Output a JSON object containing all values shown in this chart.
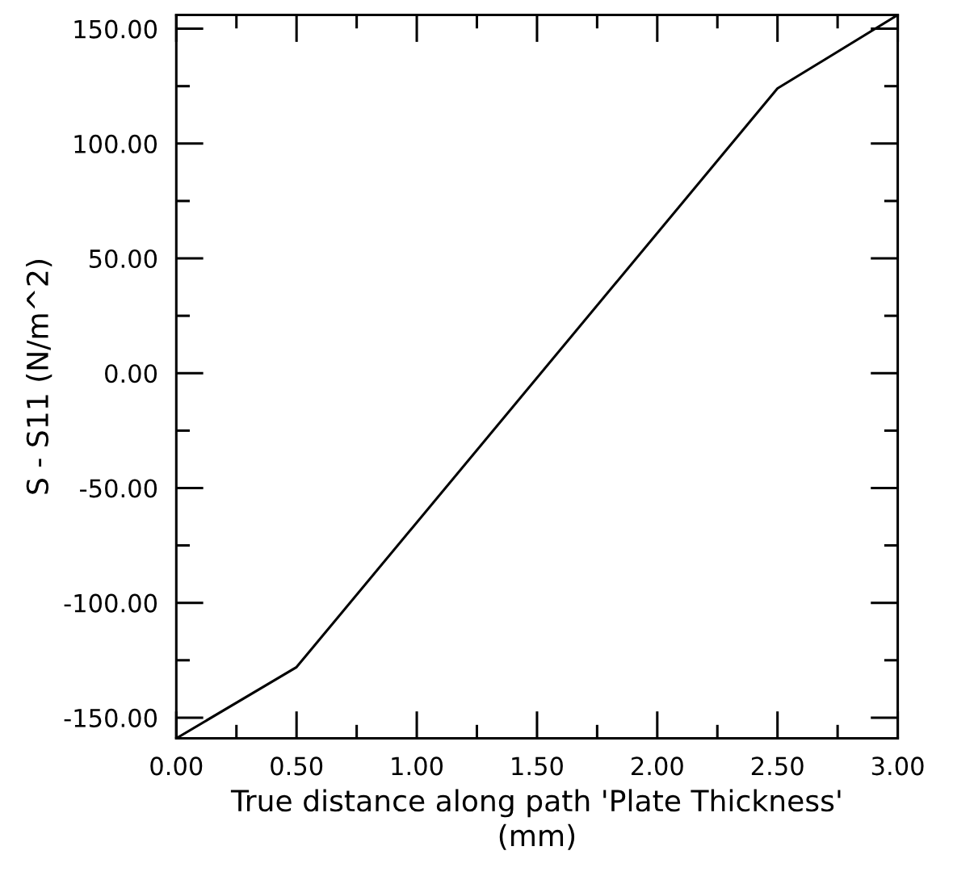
{
  "chart_data": {
    "type": "line",
    "xlabel": "True distance along path 'Plate Thickness'\n(mm)",
    "ylabel": "S - S11 (N/m^2)",
    "x": [
      0,
      0.5,
      2.5,
      3.0
    ],
    "series": [
      {
        "color": "#000000",
        "values": [
          -159,
          -128,
          124,
          156
        ]
      }
    ],
    "xlim": [
      0,
      3.0
    ],
    "ylim": [
      -159,
      156
    ],
    "xticks": [
      {
        "value": 0,
        "label": "0.00"
      },
      {
        "value": 0.25,
        "label": null
      },
      {
        "value": 0.5,
        "label": "0.50"
      },
      {
        "value": 0.75,
        "label": null
      },
      {
        "value": 1.0,
        "label": "1.00"
      },
      {
        "value": 1.25,
        "label": null
      },
      {
        "value": 1.5,
        "label": "1.50"
      },
      {
        "value": 1.75,
        "label": null
      },
      {
        "value": 2.0,
        "label": "2.00"
      },
      {
        "value": 2.25,
        "label": null
      },
      {
        "value": 2.5,
        "label": "2.50"
      },
      {
        "value": 2.75,
        "label": null
      },
      {
        "value": 3.0,
        "label": "3.00"
      }
    ],
    "yticks": [
      {
        "value": -150,
        "label": "-150.00"
      },
      {
        "value": -125,
        "label": null
      },
      {
        "value": -100,
        "label": "-100.00"
      },
      {
        "value": -75,
        "label": null
      },
      {
        "value": -50,
        "label": "-50.00"
      },
      {
        "value": -25,
        "label": null
      },
      {
        "value": 0,
        "label": "0.00"
      },
      {
        "value": 25,
        "label": null
      },
      {
        "value": 50,
        "label": "50.00"
      },
      {
        "value": 75,
        "label": null
      },
      {
        "value": 100,
        "label": "100.00"
      },
      {
        "value": 125,
        "label": null
      },
      {
        "value": 150,
        "label": "150.00"
      }
    ],
    "grid": false,
    "legend": false,
    "marker": "none",
    "line_style": "solid"
  }
}
